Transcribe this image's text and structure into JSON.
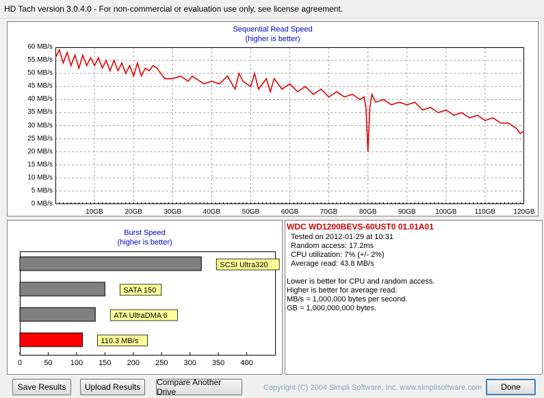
{
  "window": {
    "title": "HD Tach version 3.0.4.0  - For non-commercial or evaluation use only, see license agreement."
  },
  "sequential_chart": {
    "title": "Sequential Read Speed",
    "subtitle": "(higher is better)",
    "y_ticks": [
      "60 MB/s",
      "55 MB/s",
      "50 MB/s",
      "45 MB/s",
      "40 MB/s",
      "35 MB/s",
      "30 MB/s",
      "25 MB/s",
      "20 MB/s",
      "15 MB/s",
      "10 MB/s",
      "5 MB/s",
      "0 MB/s"
    ],
    "x_ticks": [
      "10GB",
      "20GB",
      "30GB",
      "40GB",
      "50GB",
      "60GB",
      "70GB",
      "80GB",
      "90GB",
      "100GB",
      "110GB",
      "120GB"
    ],
    "line_color": "#e00000"
  },
  "burst_chart": {
    "title": "Burst Speed",
    "subtitle": "(higher is better)",
    "x_ticks": [
      "0",
      "50",
      "100",
      "150",
      "200",
      "250",
      "300",
      "350",
      "400"
    ]
  },
  "info": {
    "drive": "WDC WD1200BEVS-60UST0 01.01A01",
    "tested": "Tested on 2012-01-29 at 10:31",
    "random_access": "Random access: 17.2ms",
    "cpu": "CPU utilization: 7% (+/- 2%)",
    "avg_read": "Average read: 43.8 MB/s",
    "notes": [
      "Lower is better for CPU and random access.",
      "Higher is better for average read.",
      "MB/s = 1,000,000 bytes per second.",
      "GB = 1,000,000,000 bytes."
    ]
  },
  "buttons": {
    "save": "Save Results",
    "upload": "Upload Results",
    "compare": "Compare Another Drive",
    "done": "Done"
  },
  "copyright": "Copyright (C) 2004 Simpli Software, Inc. www.simplisoftware.com",
  "chart_data": [
    {
      "type": "line",
      "title": "Sequential Read Speed",
      "subtitle": "(higher is better)",
      "xlabel": "",
      "ylabel": "",
      "xlim": [
        0,
        120
      ],
      "ylim": [
        0,
        60
      ],
      "x_unit": "GB",
      "y_unit": "MB/s",
      "grid": true,
      "series": [
        {
          "x": [
            0,
            1,
            2,
            3,
            4,
            5,
            6,
            7,
            8,
            9,
            10,
            11,
            12,
            13,
            14,
            15,
            16,
            17,
            18,
            19,
            20,
            21,
            22,
            23,
            24,
            25,
            26,
            27,
            28,
            30,
            32,
            34,
            35,
            36,
            38,
            40,
            42,
            44,
            46,
            47,
            48,
            50,
            51,
            52,
            54,
            55,
            56,
            58,
            60,
            62,
            64,
            66,
            68,
            70,
            72,
            74,
            76,
            78,
            79,
            79.5,
            80,
            80.5,
            81,
            82,
            84,
            86,
            88,
            90,
            92,
            94,
            96,
            98,
            100,
            102,
            104,
            106,
            108,
            110,
            112,
            114,
            116,
            118,
            119,
            120
          ],
          "values": [
            56,
            59,
            54,
            58,
            53,
            57,
            52,
            57,
            53,
            56,
            53,
            56,
            52,
            55,
            51,
            55,
            51,
            54,
            50,
            53,
            49,
            54,
            49,
            52,
            51,
            53,
            52,
            50,
            48,
            48,
            49,
            47,
            49,
            48,
            46,
            47,
            46,
            49,
            44,
            50,
            47,
            45,
            50,
            44,
            48,
            43,
            48,
            44,
            46,
            43,
            45,
            42,
            44,
            41,
            43,
            41,
            42,
            40,
            41,
            37,
            20,
            37,
            42,
            39,
            40,
            38,
            39,
            38,
            39,
            36,
            37,
            35,
            36,
            34,
            35,
            33,
            34,
            32,
            33,
            31,
            31,
            29,
            27,
            28
          ]
        }
      ]
    },
    {
      "type": "bar",
      "title": "Burst Speed",
      "subtitle": "(higher is better)",
      "orientation": "horizontal",
      "xlim": [
        0,
        450
      ],
      "categories": [
        "SCSI Ultra320",
        "SATA 150",
        "ATA UltraDMA 6",
        "110.3 MB/s"
      ],
      "values": [
        320,
        150,
        133,
        110.3
      ],
      "colors": [
        "#808080",
        "#808080",
        "#808080",
        "#ff0000"
      ],
      "label_bg": "#ffff99"
    }
  ]
}
